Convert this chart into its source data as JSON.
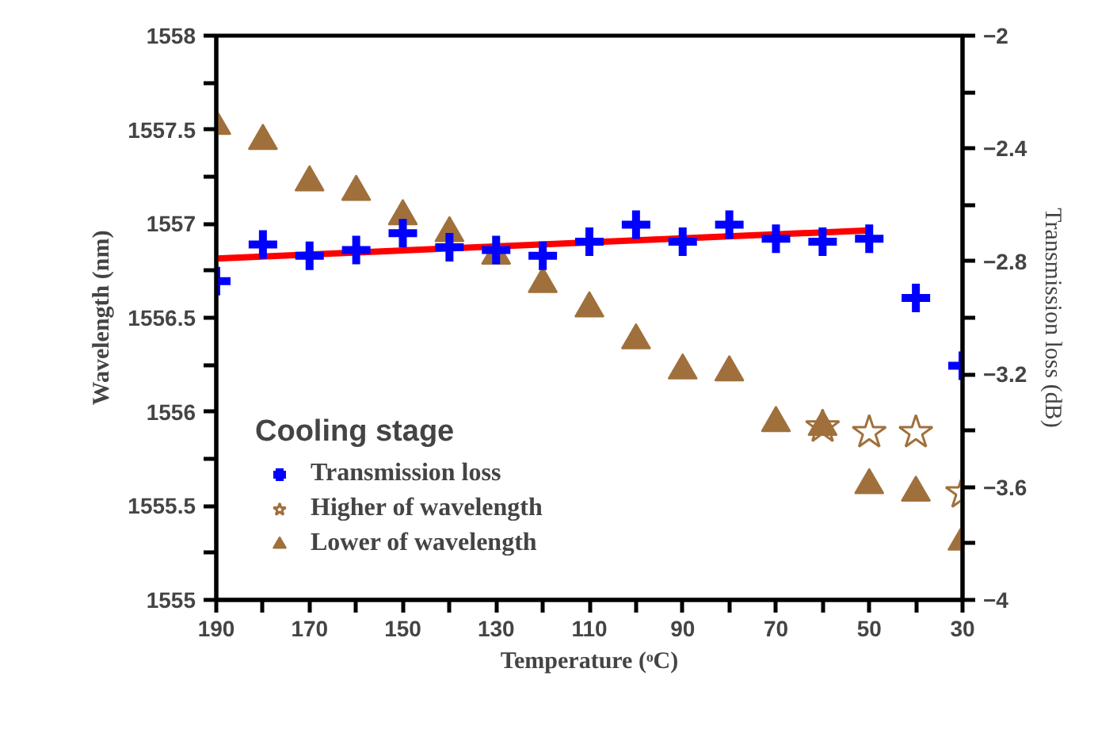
{
  "chart_data": {
    "type": "scatter",
    "xlabel": "Temperature (ᵒC)",
    "ylabel": "Wavelength (nm)",
    "y2label": "Transmission loss (dB)",
    "legend_title": "Cooling stage",
    "legend": "bottom left",
    "grid": false,
    "x": [
      190,
      180,
      170,
      160,
      150,
      140,
      130,
      120,
      110,
      100,
      90,
      80,
      70,
      60,
      50,
      40,
      30
    ],
    "xlim": [
      190,
      30
    ],
    "xticks": [
      190,
      {
        "value": 180,
        "label": null
      },
      170,
      {
        "value": 160,
        "label": null
      },
      150,
      {
        "value": 140,
        "label": null
      },
      130,
      {
        "value": 120,
        "label": null
      },
      110,
      {
        "value": 100,
        "label": null
      },
      90,
      {
        "value": 80,
        "label": null
      },
      70,
      {
        "value": 60,
        "label": null
      },
      50,
      {
        "value": 40,
        "label": null
      },
      30
    ],
    "ylim": [
      1555,
      1558
    ],
    "yticks": [
      1555,
      {
        "value": 1555.25,
        "label": null
      },
      1555.5,
      {
        "value": 1555.75,
        "label": null
      },
      1556,
      {
        "value": 1556.25,
        "label": null
      },
      1556.5,
      {
        "value": 1556.75,
        "label": null
      },
      1557,
      {
        "value": 1557.25,
        "label": null
      },
      1557.5,
      {
        "value": 1557.75,
        "label": null
      },
      1558
    ],
    "y2lim": [
      -4,
      -2
    ],
    "y2ticks": [
      -4,
      {
        "value": -3.8,
        "label": null
      },
      -3.6,
      {
        "value": -3.4,
        "label": null
      },
      -3.2,
      {
        "value": -3.0,
        "label": null
      },
      -2.8,
      {
        "value": -2.6,
        "label": null
      },
      -2.4,
      {
        "value": -2.2,
        "label": null
      },
      -2
    ],
    "series": [
      {
        "name": "Transmission loss",
        "color": "#0000ff",
        "marker": "cross",
        "axis": "y2",
        "values": [
          -2.87,
          -2.74,
          -2.78,
          -2.76,
          -2.7,
          -2.75,
          -2.76,
          -2.78,
          -2.73,
          -2.67,
          -2.73,
          -2.67,
          -2.72,
          -2.73,
          -2.72,
          -2.93,
          -3.17
        ]
      },
      {
        "name": "Higher of wavelength",
        "color": "#a0703c",
        "marker": "star",
        "x": [
          60,
          50,
          40,
          30
        ],
        "values": [
          1555.92,
          1555.89,
          1555.89,
          1555.57
        ]
      },
      {
        "name": "Lower of wavelength",
        "color": "#a0703c",
        "marker": "triangle",
        "values": [
          1557.52,
          1557.44,
          1557.22,
          1557.17,
          1557.04,
          1556.95,
          1556.83,
          1556.68,
          1556.55,
          1556.38,
          1556.22,
          1556.21,
          1555.94,
          1555.92,
          1555.61,
          1555.57,
          1555.31
        ]
      },
      {
        "type": "line",
        "color": "#ff0000",
        "axis": "y2",
        "x": [
          190,
          50
        ],
        "values": [
          -2.79,
          -2.69
        ]
      }
    ]
  }
}
